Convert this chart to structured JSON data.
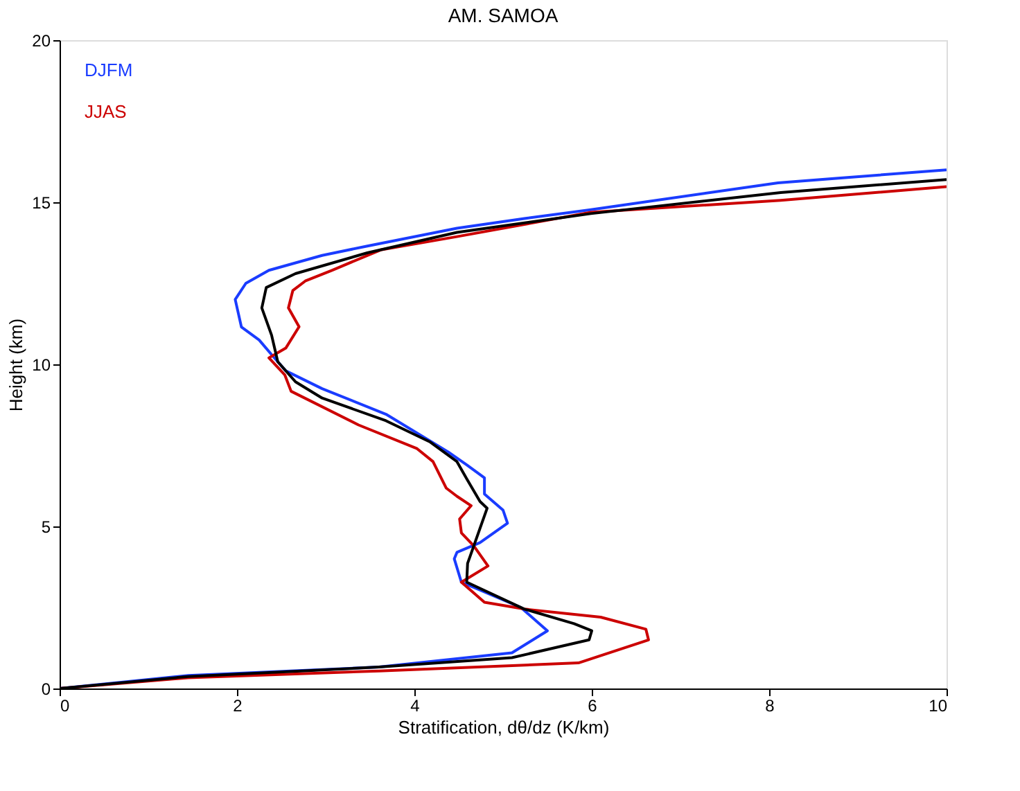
{
  "chart_data": {
    "type": "line",
    "title": "AM. SAMOA",
    "xlabel": "Stratification, dθ/dz (K/km)",
    "ylabel": "Height (km)",
    "xlim": [
      0,
      10
    ],
    "xticks": [
      0,
      2,
      4,
      6,
      8,
      10
    ],
    "ylim": [
      0,
      20
    ],
    "yticks": [
      0,
      5,
      10,
      15,
      20
    ],
    "grid": false,
    "legend": "top left",
    "line_style": "solid",
    "series": [
      {
        "name": "DJFM",
        "color": "#1a3cff",
        "x": [
          0,
          1.45,
          3.6,
          5.1,
          5.5,
          5.2,
          4.53,
          4.45,
          4.48,
          4.74,
          5.05,
          5.0,
          4.79,
          4.79,
          4.59,
          4.38,
          3.68,
          2.96,
          2.55,
          2.39,
          2.25,
          2.05,
          1.98,
          2.1,
          2.36,
          2.96,
          3.47,
          4.48,
          5.24,
          5.99,
          8.1,
          10
        ],
        "values": [
          0,
          0.4,
          0.66,
          1.1,
          1.78,
          2.5,
          3.28,
          4.0,
          4.2,
          4.5,
          5.1,
          5.5,
          6.0,
          6.5,
          6.9,
          7.3,
          8.46,
          9.25,
          9.8,
          10.3,
          10.75,
          11.15,
          12.0,
          12.5,
          12.9,
          13.36,
          13.65,
          14.2,
          14.5,
          14.77,
          15.6,
          16.0
        ]
      },
      {
        "name": "JJAS",
        "color": "#cc0000",
        "x": [
          0,
          1.45,
          3.6,
          5.85,
          6.64,
          6.61,
          6.1,
          5.24,
          4.79,
          4.53,
          4.83,
          4.67,
          4.53,
          4.51,
          4.64,
          4.48,
          4.36,
          4.21,
          4.03,
          3.37,
          2.61,
          2.54,
          2.36,
          2.55,
          2.7,
          2.58,
          2.63,
          2.77,
          3.07,
          3.62,
          4.48,
          5.99,
          8.13,
          10
        ],
        "values": [
          0,
          0.33,
          0.54,
          0.79,
          1.5,
          1.83,
          2.2,
          2.45,
          2.66,
          3.28,
          3.78,
          4.4,
          4.8,
          5.23,
          5.64,
          5.93,
          6.18,
          7.0,
          7.4,
          8.13,
          9.17,
          9.67,
          10.2,
          10.5,
          11.16,
          11.74,
          12.28,
          12.57,
          12.9,
          13.53,
          13.94,
          14.69,
          15.06,
          15.48
        ]
      },
      {
        "color": "#000000",
        "x": [
          0,
          1.45,
          3.6,
          5.1,
          5.97,
          6.0,
          5.8,
          5.24,
          4.59,
          4.6,
          4.67,
          4.82,
          4.74,
          4.59,
          4.48,
          4.18,
          3.68,
          2.96,
          2.66,
          2.46,
          2.39,
          2.28,
          2.33,
          2.66,
          3.47,
          4.48,
          5.99,
          8.13,
          10
        ],
        "values": [
          0,
          0.37,
          0.66,
          0.95,
          1.5,
          1.78,
          2.0,
          2.45,
          3.28,
          3.86,
          4.4,
          5.56,
          5.77,
          6.47,
          7.0,
          7.6,
          8.26,
          8.96,
          9.46,
          10.08,
          10.9,
          11.74,
          12.37,
          12.8,
          13.44,
          14.07,
          14.65,
          15.3,
          15.7
        ]
      }
    ]
  }
}
